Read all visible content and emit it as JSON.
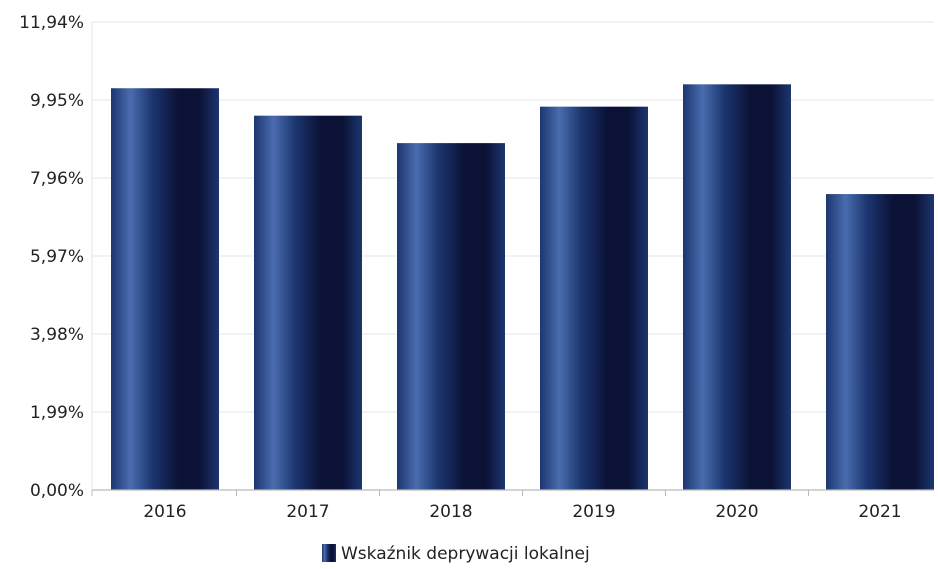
{
  "chart_data": {
    "type": "bar",
    "categories": [
      "2016",
      "2017",
      "2018",
      "2019",
      "2020",
      "2021"
    ],
    "series": [
      {
        "name": "Wskaźnik deprywacji lokalnej",
        "values": [
          10.25,
          9.55,
          8.85,
          9.78,
          10.35,
          7.55
        ]
      }
    ],
    "y_ticks": [
      "0,00%",
      "1,99%",
      "3,98%",
      "5,97%",
      "7,96%",
      "9,95%",
      "11,94%"
    ],
    "y_tick_values": [
      0,
      1.99,
      3.98,
      5.97,
      7.96,
      9.95,
      11.94
    ],
    "ylim": [
      0,
      11.94
    ],
    "grid": true,
    "legend_position": "bottom-center",
    "colors": {
      "bar_dark": "#0b1236",
      "bar_mid": "#1c3670",
      "bar_light": "#4a6cae",
      "grid": "#e6e6e6",
      "axis": "#bbbbbb",
      "text": "#222222"
    }
  }
}
